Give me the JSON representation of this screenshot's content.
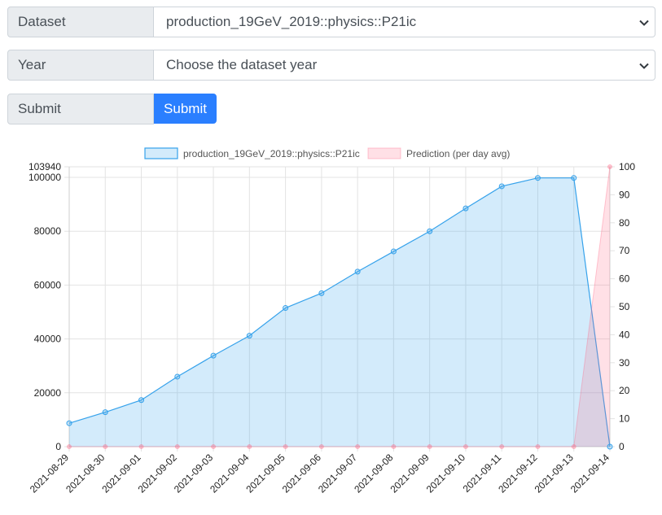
{
  "form": {
    "dataset": {
      "label": "Dataset",
      "selected": "production_19GeV_2019::physics::P21ic"
    },
    "year": {
      "label": "Year",
      "selected": "Choose the dataset year"
    },
    "submit": {
      "label": "Submit",
      "button_label": "Submit"
    }
  },
  "colors": {
    "series_line": "#36a2eb",
    "series_fill": "rgba(54,162,235,0.22)",
    "prediction_line": "#ff6384",
    "prediction_fill": "rgba(255,99,132,0.2)",
    "button": "#2a7fff"
  },
  "chart_data": {
    "type": "area",
    "legend_position": "top",
    "grid": true,
    "x": [
      "2021-08-29",
      "2021-08-30",
      "2021-09-01",
      "2021-09-02",
      "2021-09-03",
      "2021-09-04",
      "2021-09-05",
      "2021-09-06",
      "2021-09-07",
      "2021-09-08",
      "2021-09-09",
      "2021-09-10",
      "2021-09-11",
      "2021-09-12",
      "2021-09-13",
      "2021-09-14"
    ],
    "y_left": {
      "min": 0,
      "max": 103940,
      "ticks": [
        0,
        20000,
        40000,
        60000,
        80000,
        100000,
        103940
      ]
    },
    "y_right": {
      "min": 0,
      "max": 100,
      "ticks": [
        0,
        10,
        20,
        30,
        40,
        50,
        60,
        70,
        80,
        90,
        100
      ]
    },
    "series": [
      {
        "name": "production_19GeV_2019::physics::P21ic",
        "axis": "left",
        "values": [
          8700,
          12800,
          17300,
          26000,
          33800,
          41200,
          51500,
          57000,
          65000,
          72500,
          80000,
          88500,
          96700,
          99800,
          99800,
          0
        ]
      },
      {
        "name": "Prediction (per day avg)",
        "axis": "right",
        "values": [
          0,
          0,
          0,
          0,
          0,
          0,
          0,
          0,
          0,
          0,
          0,
          0,
          0,
          0,
          0,
          100
        ]
      }
    ]
  }
}
